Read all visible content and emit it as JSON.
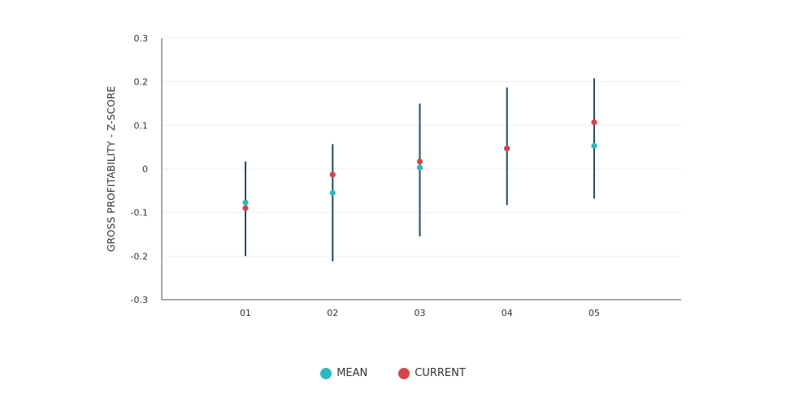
{
  "chart_data": {
    "type": "scatter",
    "categories": [
      "01",
      "02",
      "03",
      "04",
      "05"
    ],
    "ylabel": "GROSS PROFITABILITY - Z-SCORE",
    "ylim": [
      -0.3,
      0.3
    ],
    "yticks": [
      0.3,
      0.2,
      0.1,
      0,
      -0.1,
      -0.2,
      -0.3
    ],
    "ytick_labels": [
      "0.3",
      "0.2",
      "0.1",
      "0",
      "-0.1",
      "-0.2",
      "-0.3"
    ],
    "ranges": [
      {
        "low": -0.2,
        "high": 0.017
      },
      {
        "low": -0.212,
        "high": 0.057
      },
      {
        "low": -0.155,
        "high": 0.15
      },
      {
        "low": -0.083,
        "high": 0.187
      },
      {
        "low": -0.068,
        "high": 0.208
      }
    ],
    "series": [
      {
        "name": "MEAN",
        "color": "#2bb9bf",
        "values": [
          -0.077,
          -0.055,
          0.003,
          0.047,
          0.053
        ]
      },
      {
        "name": "CURRENT",
        "color": "#d2474d",
        "values": [
          -0.09,
          -0.013,
          0.017,
          0.047,
          0.107
        ]
      }
    ],
    "range_color": "#1f4e6a",
    "grid": true,
    "legend_position": "bottom-center"
  }
}
